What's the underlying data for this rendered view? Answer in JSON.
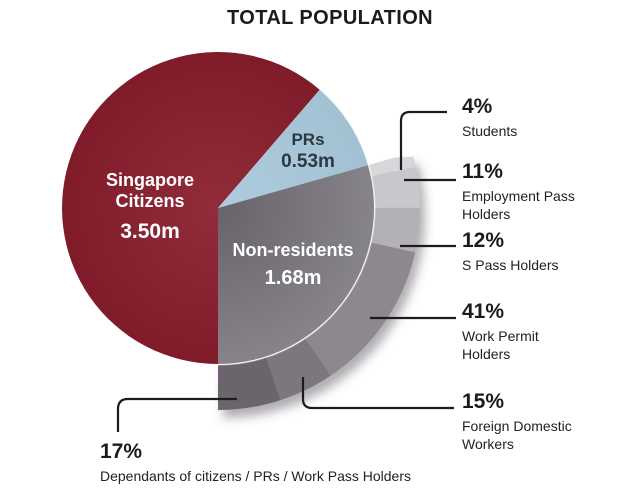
{
  "title": "TOTAL POPULATION",
  "chart_data": {
    "type": "pie",
    "title": "TOTAL POPULATION",
    "value_unit": "millions of people",
    "start_angle_compass_deg": 180,
    "direction": "clockwise",
    "slices": [
      {
        "label": "Singapore Citizens",
        "value": 3.5,
        "value_label": "3.50m",
        "color": "#8a1e2d"
      },
      {
        "label": "PRs",
        "value": 0.53,
        "value_label": "0.53m",
        "color": "#a9c9db"
      },
      {
        "label": "Non-residents",
        "value": 1.68,
        "value_label": "1.68m",
        "color": "#6f6972"
      }
    ],
    "breakdown_of": "Non-residents",
    "breakdown": [
      {
        "pct": "4%",
        "value": 4,
        "label": "Students",
        "color": "#d7d6d9"
      },
      {
        "pct": "11%",
        "value": 11,
        "label": "Employment Pass Holders",
        "color": "#c8c7cb"
      },
      {
        "pct": "12%",
        "value": 12,
        "label": "S Pass Holders",
        "color": "#b3b1b6"
      },
      {
        "pct": "41%",
        "value": 41,
        "label": "Work Permit Holders",
        "color": "#8e888e"
      },
      {
        "pct": "15%",
        "value": 15,
        "label": "Foreign Domestic Workers",
        "color": "#7d777d"
      },
      {
        "pct": "17%",
        "value": 17,
        "label": "Dependants of citizens / PRs / Work Pass Holders",
        "color": "#6b646c"
      }
    ],
    "legend_position": "callouts",
    "grid": false
  }
}
